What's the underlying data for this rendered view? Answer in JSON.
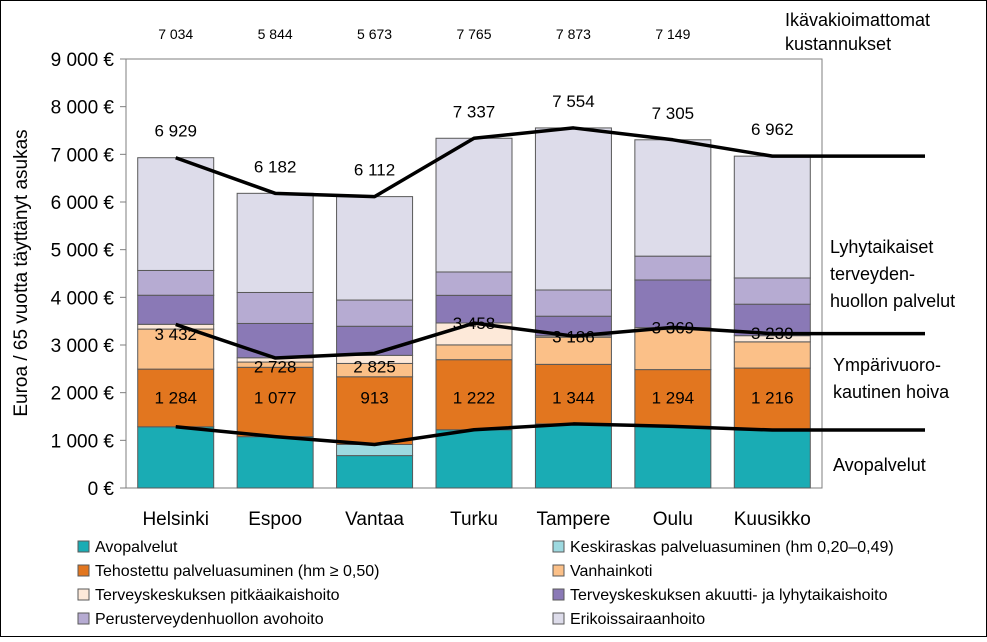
{
  "chart_data": {
    "type": "bar",
    "stacked": true,
    "ylabel": "Euroa / 65 vuotta täyttänyt asukas",
    "ylim": [
      0,
      9000
    ],
    "yticks": [
      "0 €",
      "1 000 €",
      "2 000 €",
      "3 000 €",
      "4 000 €",
      "5 000 €",
      "6 000 €",
      "7 000 €",
      "8 000 €",
      "9 000 €"
    ],
    "categories": [
      "Helsinki",
      "Espoo",
      "Vantaa",
      "Turku",
      "Tampere",
      "Oulu",
      "Kuusikko"
    ],
    "series": [
      {
        "name": "Avopalvelut",
        "color": "#1aacb4",
        "values": [
          1284,
          1077,
          680,
          1222,
          1344,
          1294,
          1216
        ]
      },
      {
        "name": "Keskiraskas palveluasuminen (hm 0,20–0,49)",
        "color": "#9dd9e0",
        "values": [
          0,
          0,
          233,
          0,
          0,
          0,
          0
        ]
      },
      {
        "name": "Tehostettu palveluasuminen (hm ≥ 0,50)",
        "color": "#e2761f",
        "values": [
          1210,
          1455,
          1420,
          1470,
          1250,
          1190,
          1300
        ]
      },
      {
        "name": "Vanhainkoti",
        "color": "#fbc088",
        "values": [
          840,
          110,
          280,
          310,
          570,
          840,
          550
        ]
      },
      {
        "name": "Terveyskeskuksen pitkäaikaishoito",
        "color": "#fde9d9",
        "values": [
          100,
          90,
          170,
          460,
          30,
          40,
          130
        ]
      },
      {
        "name": "Terveyskeskuksen akuutti- ja lyhytaikaishoito",
        "color": "#8a79b6",
        "values": [
          610,
          720,
          610,
          580,
          410,
          1000,
          660
        ]
      },
      {
        "name": "Perusterveydenhuollon avohoito",
        "color": "#b6abd2",
        "values": [
          520,
          650,
          550,
          490,
          550,
          500,
          550
        ]
      },
      {
        "name": "Erikoissairaanhoito",
        "color": "#dddcea",
        "values": [
          2365,
          2080,
          2170,
          2805,
          3400,
          2441,
          2556
        ]
      }
    ],
    "totals": [
      "6 929",
      "6 182",
      "6 112",
      "7 337",
      "7 554",
      "7 305",
      "6 962"
    ],
    "ikavakioimattomat": [
      "7 034",
      "5 844",
      "5 673",
      "7 765",
      "7 873",
      "7 149"
    ],
    "avopalvelut_labels": [
      "1 284",
      "1 077",
      "913",
      "1 222",
      "1 344",
      "1 294",
      "1 216"
    ],
    "ymparivuorokautinen_labels": [
      "3 432",
      "2 728",
      "2 825",
      "3 458",
      "3 186",
      "3 369",
      "3 239"
    ],
    "lines": {
      "avopalvelut": [
        1284,
        1077,
        913,
        1222,
        1344,
        1294,
        1216
      ],
      "ymparivuorokautinen": [
        3432,
        2728,
        2825,
        3458,
        3186,
        3369,
        3239
      ],
      "lyhytaikaiset": [
        6929,
        6182,
        6112,
        7337,
        7554,
        7305,
        6962
      ]
    },
    "right_labels": {
      "ikavakioimattomat": [
        "Ikävakioimattomat",
        "kustannukset"
      ],
      "lyhytaikaiset": [
        "Lyhytaikaiset",
        "terveyden-",
        "huollon palvelut"
      ],
      "ymparivuorokautinen": [
        "Ympärivuoro-",
        "kautinen hoiva"
      ],
      "avopalvelut": [
        "Avopalvelut"
      ]
    },
    "legend_position": "bottom",
    "grid": false
  }
}
